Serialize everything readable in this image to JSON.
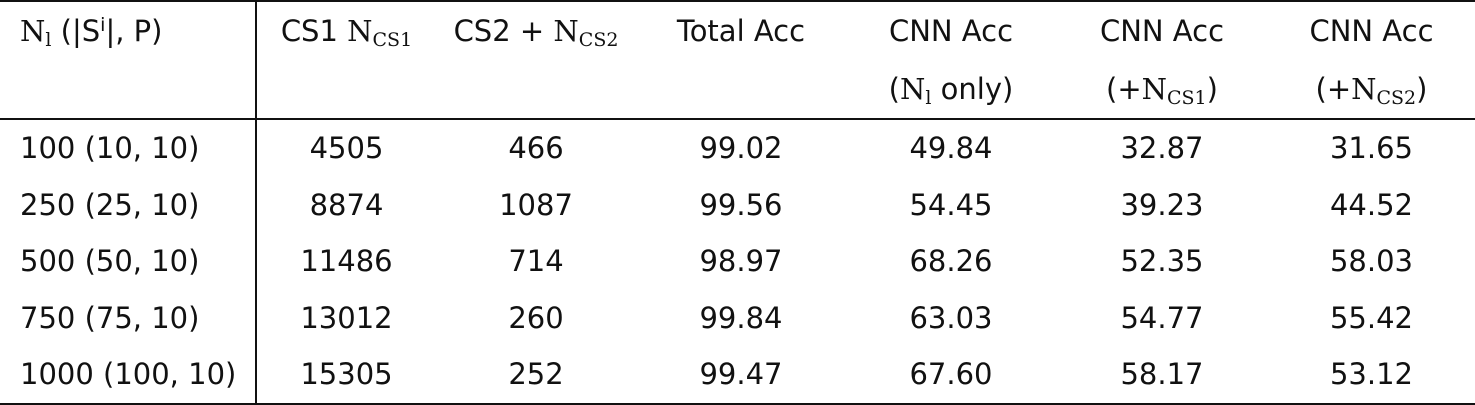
{
  "table": {
    "header": {
      "col0": {
        "main": "N",
        "sub": "l",
        "open": " (|S",
        "sup": "i",
        "close": "|, P)"
      },
      "col1": {
        "main": "CS1 ",
        "n": "N",
        "sub": "CS1"
      },
      "col2": {
        "main": "CS2 + ",
        "n": "N",
        "sub": "CS2"
      },
      "col3": {
        "main": "Total Acc"
      },
      "col4": {
        "line1": "CNN Acc",
        "line2_open": "(",
        "n": "N",
        "sub": "l",
        "line2_close": " only)"
      },
      "col5": {
        "line1": "CNN Acc",
        "line2_open": "(+",
        "n": "N",
        "sub": "CS1",
        "line2_close": ")"
      },
      "col6": {
        "line1": "CNN Acc",
        "line2_open": "(+",
        "n": "N",
        "sub": "CS2",
        "line2_close": ")"
      }
    },
    "rows": [
      [
        "100 (10, 10)",
        "4505",
        "466",
        "99.02",
        "49.84",
        "32.87",
        "31.65"
      ],
      [
        "250 (25, 10)",
        "8874",
        "1087",
        "99.56",
        "54.45",
        "39.23",
        "44.52"
      ],
      [
        "500 (50, 10)",
        "11486",
        "714",
        "98.97",
        "68.26",
        "52.35",
        "58.03"
      ],
      [
        "750 (75, 10)",
        "13012",
        "260",
        "99.84",
        "63.03",
        "54.77",
        "55.42"
      ],
      [
        "1000 (100, 10)",
        "15305",
        "252",
        "99.47",
        "67.60",
        "58.17",
        "53.12"
      ]
    ]
  }
}
